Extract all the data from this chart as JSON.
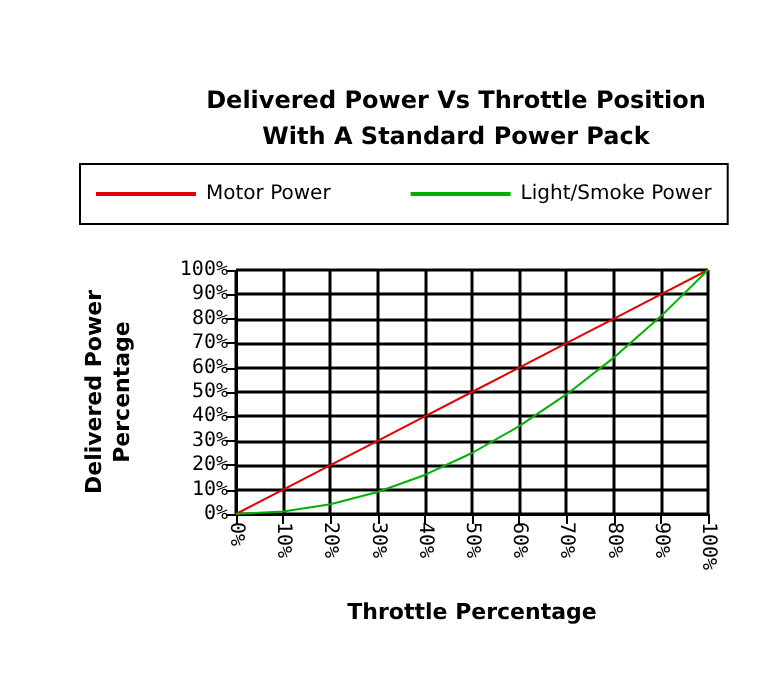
{
  "chart_data": {
    "type": "line",
    "title": "Delivered Power Vs Throttle Position\nWith A Standard Power Pack",
    "xlabel": "Throttle Percentage",
    "ylabel": "Delivered Power\nPercentage",
    "x": [
      0,
      10,
      20,
      30,
      40,
      50,
      60,
      70,
      80,
      90,
      100
    ],
    "series": [
      {
        "name": "Motor Power",
        "color": "#e00000",
        "values": [
          0,
          10,
          20,
          30,
          40,
          50,
          60,
          70,
          80,
          90,
          100
        ]
      },
      {
        "name": "Light/Smoke Power",
        "color": "#00b000",
        "values": [
          0,
          1,
          4,
          9,
          16,
          25,
          36,
          49,
          64,
          81,
          100
        ]
      }
    ],
    "xlim": [
      0,
      100
    ],
    "ylim": [
      0,
      100
    ],
    "xticks": [
      {
        "value": 0,
        "label": "0%"
      },
      {
        "value": 10,
        "label": "10%"
      },
      {
        "value": 20,
        "label": "20%"
      },
      {
        "value": 30,
        "label": "30%"
      },
      {
        "value": 40,
        "label": "40%"
      },
      {
        "value": 50,
        "label": "50%"
      },
      {
        "value": 60,
        "label": "60%"
      },
      {
        "value": 70,
        "label": "70%"
      },
      {
        "value": 80,
        "label": "80%"
      },
      {
        "value": 90,
        "label": "90%"
      },
      {
        "value": 100,
        "label": "100%"
      }
    ],
    "yticks": [
      {
        "value": 0,
        "label": "0%"
      },
      {
        "value": 10,
        "label": "10%"
      },
      {
        "value": 20,
        "label": "20%"
      },
      {
        "value": 30,
        "label": "30%"
      },
      {
        "value": 40,
        "label": "40%"
      },
      {
        "value": 50,
        "label": "50%"
      },
      {
        "value": 60,
        "label": "60%"
      },
      {
        "value": 70,
        "label": "70%"
      },
      {
        "value": 80,
        "label": "80%"
      },
      {
        "value": 90,
        "label": "90%"
      },
      {
        "value": 100,
        "label": "100%"
      }
    ],
    "grid": true,
    "legend": "top",
    "marker": "none",
    "line_style": "solid"
  }
}
